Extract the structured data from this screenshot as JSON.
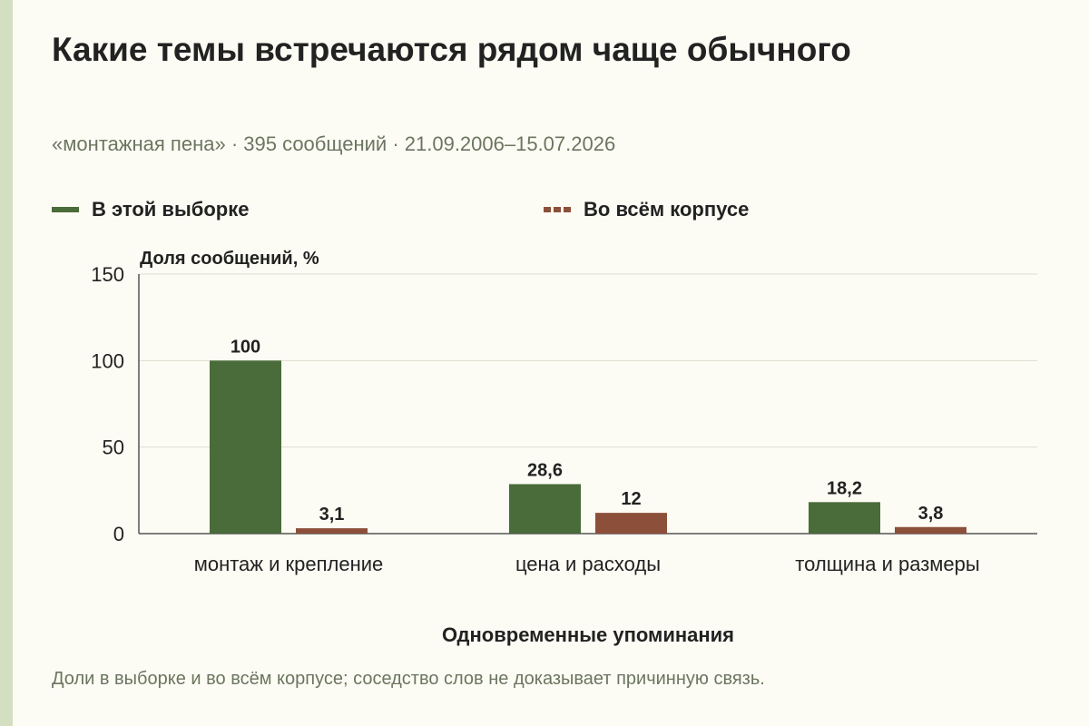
{
  "header": {
    "title": "Какие темы встречаются рядом чаще обычного",
    "subtitle": "«монтажная пена» · 395 сообщений · 21.09.2006–15.07.2026"
  },
  "colors": {
    "sample": "#4a6b3a",
    "corpus": "#8c4f3a",
    "grid": "#dcdcd0",
    "axis": "#555555"
  },
  "footnote": "Доли в выборке и во всём корпусе; соседство слов не доказывает причинную связь.",
  "chart_data": {
    "type": "bar",
    "title": "Какие темы встречаются рядом чаще обычного",
    "xlabel": "Одновременные упоминания",
    "ylabel": "Доля сообщений, %",
    "ylim": [
      0,
      150
    ],
    "yticks": [
      0,
      50,
      100,
      150
    ],
    "grid": true,
    "legend_position": "top",
    "categories": [
      "монтаж и крепление",
      "цена и расходы",
      "толщина и размеры"
    ],
    "series": [
      {
        "name": "В этой выборке",
        "values": [
          100,
          28.6,
          18.2
        ],
        "labels": [
          "100",
          "28,6",
          "18,2"
        ]
      },
      {
        "name": "Во всём корпусе",
        "values": [
          3.1,
          12,
          3.8
        ],
        "labels": [
          "3,1",
          "12",
          "3,8"
        ]
      }
    ]
  }
}
